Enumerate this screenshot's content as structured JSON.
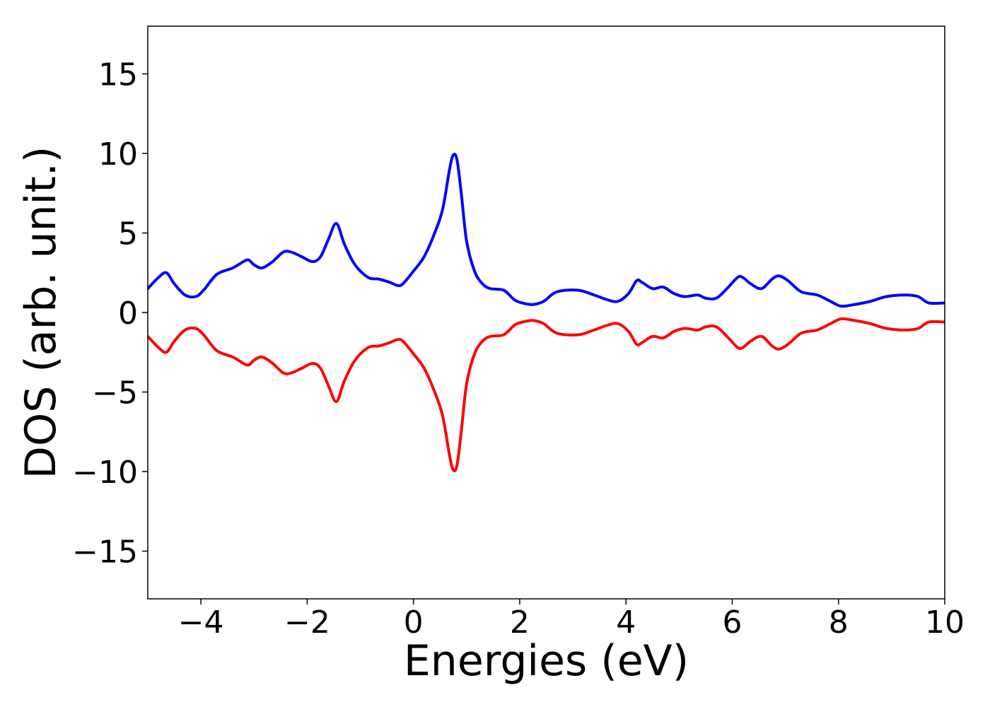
{
  "chart_data": {
    "type": "line",
    "title": "",
    "xlabel": "Energies (eV)",
    "ylabel": "DOS (arb. unit.)",
    "xlim": [
      -5,
      10
    ],
    "ylim": [
      -18,
      18
    ],
    "grid": false,
    "legend": "none",
    "x_ticks": [
      -4,
      -2,
      0,
      2,
      4,
      6,
      8,
      10
    ],
    "x_tick_labels": [
      "−4",
      "−2",
      "0",
      "2",
      "4",
      "6",
      "8",
      "10"
    ],
    "y_ticks": [
      15,
      10,
      5,
      0,
      -5,
      -10,
      -15
    ],
    "y_tick_labels": [
      "15",
      "10",
      "5",
      "0",
      "−5",
      "−10",
      "−15"
    ],
    "series": [
      {
        "color": "#0000ff",
        "x": [
          -5.0,
          -4.8,
          -4.65,
          -4.5,
          -4.3,
          -4.1,
          -3.95,
          -3.7,
          -3.4,
          -3.2,
          -3.1,
          -3.0,
          -2.85,
          -2.65,
          -2.45,
          -2.3,
          -2.1,
          -1.9,
          -1.75,
          -1.6,
          -1.45,
          -1.3,
          -1.1,
          -0.85,
          -0.65,
          -0.45,
          -0.3,
          -0.2,
          0.0,
          0.2,
          0.4,
          0.55,
          0.68,
          0.75,
          0.82,
          0.9,
          1.0,
          1.15,
          1.3,
          1.45,
          1.7,
          1.9,
          2.05,
          2.25,
          2.45,
          2.7,
          3.1,
          3.4,
          3.65,
          3.85,
          4.05,
          4.2,
          4.3,
          4.5,
          4.7,
          4.9,
          5.1,
          5.35,
          5.5,
          5.7,
          5.9,
          6.1,
          6.2,
          6.35,
          6.55,
          6.75,
          6.88,
          7.05,
          7.3,
          7.6,
          7.85,
          8.05,
          8.3,
          8.6,
          8.9,
          9.25,
          9.5,
          9.7,
          10.0
        ],
        "y": [
          1.5,
          2.2,
          2.5,
          1.8,
          1.1,
          1.0,
          1.4,
          2.4,
          2.8,
          3.2,
          3.3,
          3.0,
          2.8,
          3.2,
          3.8,
          3.8,
          3.5,
          3.2,
          3.5,
          4.6,
          5.6,
          4.3,
          3.0,
          2.2,
          2.1,
          1.9,
          1.7,
          1.8,
          2.6,
          3.5,
          5.0,
          6.5,
          9.0,
          9.9,
          9.6,
          7.5,
          4.5,
          2.6,
          1.8,
          1.5,
          1.4,
          0.8,
          0.6,
          0.5,
          0.7,
          1.3,
          1.4,
          1.1,
          0.8,
          0.7,
          1.2,
          2.0,
          1.9,
          1.5,
          1.6,
          1.2,
          1.0,
          1.1,
          0.9,
          0.9,
          1.5,
          2.2,
          2.2,
          1.8,
          1.5,
          2.1,
          2.3,
          2.0,
          1.3,
          1.1,
          0.7,
          0.4,
          0.5,
          0.7,
          1.0,
          1.1,
          1.0,
          0.6,
          0.6
        ]
      },
      {
        "color": "#ff0000",
        "x": [
          -5.0,
          -4.8,
          -4.65,
          -4.5,
          -4.3,
          -4.1,
          -3.95,
          -3.7,
          -3.4,
          -3.2,
          -3.1,
          -3.0,
          -2.85,
          -2.65,
          -2.45,
          -2.3,
          -2.1,
          -1.9,
          -1.75,
          -1.6,
          -1.45,
          -1.3,
          -1.1,
          -0.85,
          -0.65,
          -0.45,
          -0.3,
          -0.2,
          0.0,
          0.2,
          0.4,
          0.55,
          0.68,
          0.75,
          0.82,
          0.9,
          1.0,
          1.15,
          1.3,
          1.45,
          1.7,
          1.9,
          2.05,
          2.25,
          2.45,
          2.7,
          3.1,
          3.4,
          3.65,
          3.85,
          4.05,
          4.2,
          4.3,
          4.5,
          4.7,
          4.9,
          5.1,
          5.35,
          5.5,
          5.7,
          5.9,
          6.1,
          6.2,
          6.35,
          6.55,
          6.75,
          6.88,
          7.05,
          7.3,
          7.6,
          7.85,
          8.05,
          8.3,
          8.6,
          8.9,
          9.25,
          9.5,
          9.7,
          10.0
        ],
        "y": [
          -1.5,
          -2.2,
          -2.5,
          -1.8,
          -1.1,
          -1.0,
          -1.4,
          -2.4,
          -2.8,
          -3.2,
          -3.3,
          -3.0,
          -2.8,
          -3.2,
          -3.8,
          -3.8,
          -3.5,
          -3.2,
          -3.5,
          -4.6,
          -5.6,
          -4.3,
          -3.0,
          -2.2,
          -2.1,
          -1.9,
          -1.7,
          -1.8,
          -2.6,
          -3.5,
          -5.0,
          -6.5,
          -9.0,
          -9.9,
          -9.6,
          -7.5,
          -4.5,
          -2.6,
          -1.8,
          -1.5,
          -1.4,
          -0.8,
          -0.6,
          -0.5,
          -0.7,
          -1.3,
          -1.4,
          -1.1,
          -0.8,
          -0.7,
          -1.2,
          -2.0,
          -1.9,
          -1.5,
          -1.6,
          -1.2,
          -1.0,
          -1.1,
          -0.9,
          -0.9,
          -1.5,
          -2.2,
          -2.2,
          -1.8,
          -1.5,
          -2.1,
          -2.3,
          -2.0,
          -1.3,
          -1.1,
          -0.7,
          -0.4,
          -0.5,
          -0.7,
          -1.0,
          -1.1,
          -1.0,
          -0.6,
          -0.6
        ]
      }
    ]
  }
}
